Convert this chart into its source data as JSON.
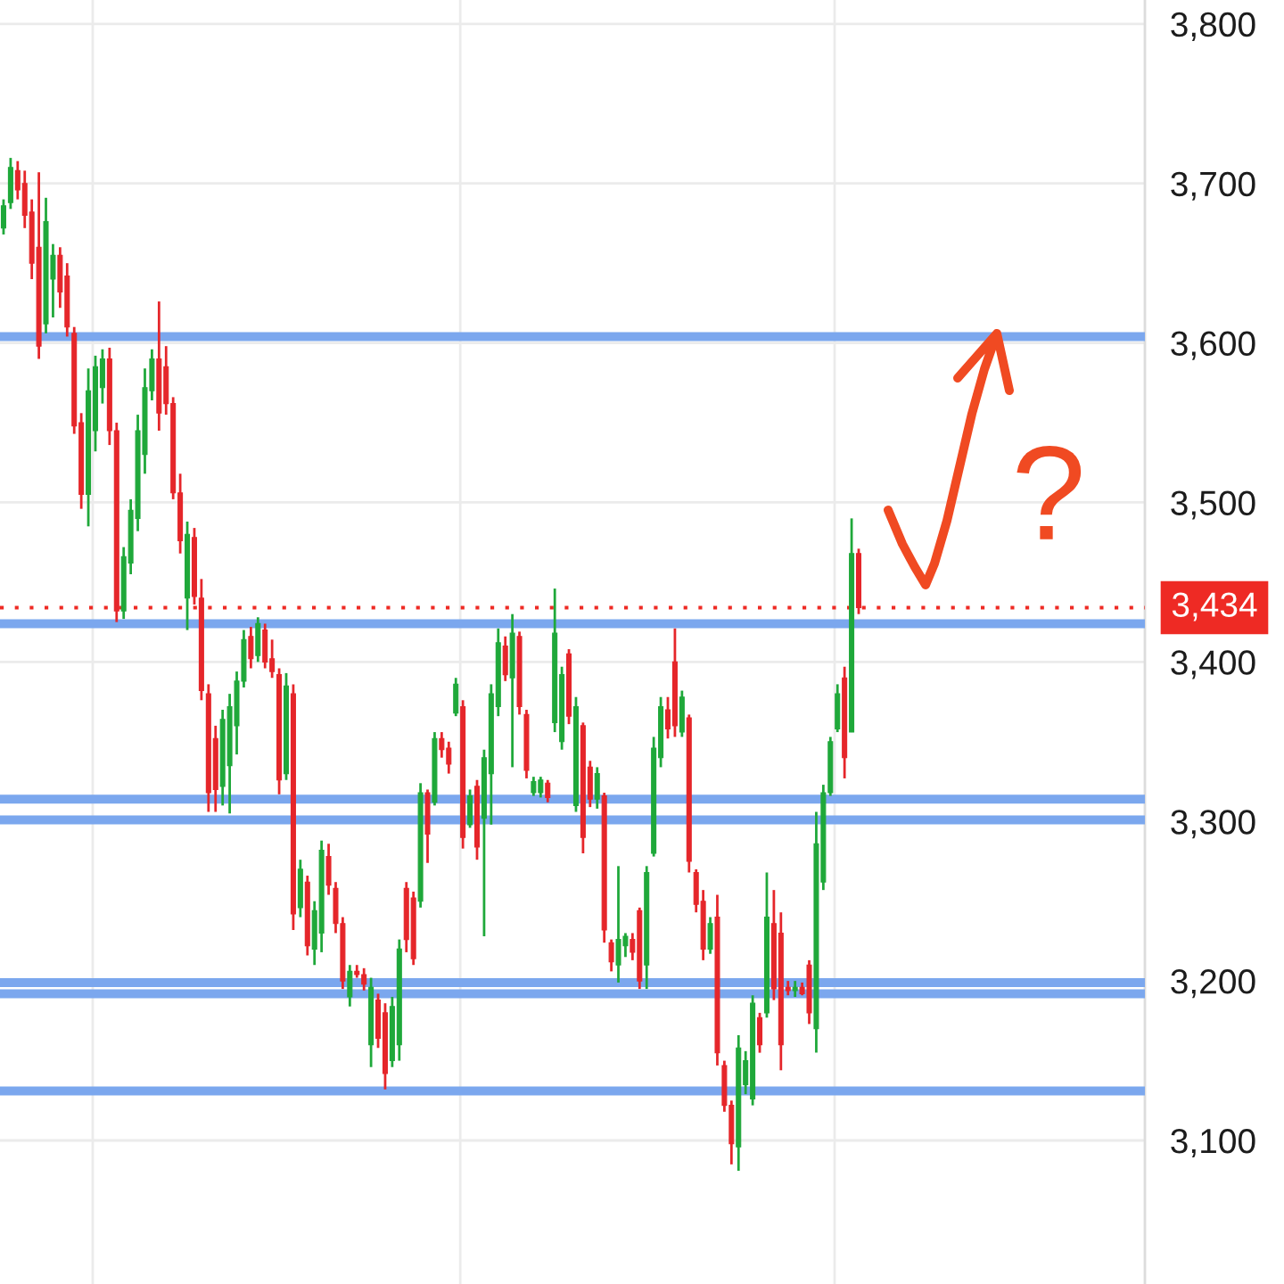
{
  "chart_data": {
    "type": "candlestick",
    "categories": [
      null,
      null,
      null,
      null,
      null,
      null,
      null,
      null,
      null,
      null,
      null,
      null,
      null,
      null,
      null,
      null,
      null,
      null,
      null,
      null,
      null,
      null,
      null,
      null,
      null,
      null,
      null,
      null,
      null,
      null,
      null,
      null,
      null,
      null,
      null,
      null,
      null,
      null,
      null,
      null,
      null,
      null,
      null,
      null,
      null,
      null,
      null,
      null,
      null,
      null,
      null,
      null,
      null,
      null,
      null,
      null,
      null,
      null,
      null,
      null,
      null,
      null,
      null,
      null,
      null,
      null,
      null,
      null,
      null,
      null,
      null,
      null,
      null,
      null,
      null,
      null,
      null,
      null,
      null,
      null,
      null,
      null,
      null,
      null,
      null,
      null,
      null,
      null,
      null,
      null,
      null,
      null,
      null,
      null,
      null,
      null,
      null,
      null,
      null,
      null,
      null,
      null,
      null,
      null,
      null,
      null,
      null,
      null,
      null,
      null,
      null,
      null,
      null,
      null,
      null,
      null,
      null,
      null,
      null,
      null,
      null,
      null,
      null,
      null,
      null,
      null,
      null,
      null,
      null,
      null,
      null,
      null,
      null,
      null,
      null,
      null,
      null,
      null,
      null,
      null,
      null,
      null,
      null,
      null,
      null,
      null,
      null,
      null,
      null,
      null,
      null,
      null,
      null,
      null,
      null,
      null,
      null,
      null,
      null,
      null,
      null,
      null
    ],
    "ohlc": [
      [
        3672,
        3690,
        3668,
        3686
      ],
      [
        3688,
        3716,
        3684,
        3710
      ],
      [
        3708,
        3714,
        3690,
        3696
      ],
      [
        3700,
        3708,
        3672,
        3680
      ],
      [
        3682,
        3690,
        3640,
        3650
      ],
      [
        3660,
        3707,
        3590,
        3598
      ],
      [
        3612,
        3691,
        3606,
        3676
      ],
      [
        3640,
        3662,
        3616,
        3655
      ],
      [
        3655,
        3660,
        3622,
        3632
      ],
      [
        3642,
        3650,
        3604,
        3610
      ],
      [
        3606,
        3610,
        3543,
        3548
      ],
      [
        3550,
        3556,
        3496,
        3505
      ],
      [
        3505,
        3584,
        3485,
        3570
      ],
      [
        3545,
        3592,
        3532,
        3585
      ],
      [
        3572,
        3596,
        3562,
        3590
      ],
      [
        3590,
        3597,
        3536,
        3545
      ],
      [
        3545,
        3550,
        3425,
        3432
      ],
      [
        3432,
        3472,
        3427,
        3466
      ],
      [
        3462,
        3502,
        3455,
        3495
      ],
      [
        3490,
        3555,
        3482,
        3545
      ],
      [
        3530,
        3584,
        3518,
        3572
      ],
      [
        3570,
        3596,
        3564,
        3590
      ],
      [
        3590,
        3626,
        3545,
        3556
      ],
      [
        3585,
        3598,
        3555,
        3562
      ],
      [
        3562,
        3566,
        3502,
        3506
      ],
      [
        3506,
        3518,
        3468,
        3476
      ],
      [
        3440,
        3488,
        3420,
        3480
      ],
      [
        3478,
        3484,
        3436,
        3441
      ],
      [
        3440,
        3452,
        3376,
        3382
      ],
      [
        3380,
        3386,
        3306,
        3318
      ],
      [
        3352,
        3360,
        3306,
        3320
      ],
      [
        3322,
        3370,
        3310,
        3364
      ],
      [
        3335,
        3380,
        3305,
        3372
      ],
      [
        3360,
        3394,
        3342,
        3388
      ],
      [
        3388,
        3420,
        3384,
        3414
      ],
      [
        3416,
        3422,
        3396,
        3402
      ],
      [
        3404,
        3428,
        3400,
        3424
      ],
      [
        3420,
        3424,
        3396,
        3400
      ],
      [
        3402,
        3414,
        3390,
        3394
      ],
      [
        3392,
        3396,
        3317,
        3326
      ],
      [
        3330,
        3393,
        3326,
        3385
      ],
      [
        3380,
        3386,
        3232,
        3242
      ],
      [
        3246,
        3276,
        3240,
        3270
      ],
      [
        3262,
        3266,
        3216,
        3222
      ],
      [
        3220,
        3250,
        3210,
        3244
      ],
      [
        3230,
        3288,
        3218,
        3282
      ],
      [
        3278,
        3286,
        3254,
        3260
      ],
      [
        3258,
        3262,
        3230,
        3236
      ],
      [
        3236,
        3240,
        3195,
        3200
      ],
      [
        3190,
        3210,
        3184,
        3206
      ],
      [
        3206,
        3210,
        3202,
        3204
      ],
      [
        3204,
        3208,
        3194,
        3198
      ],
      [
        3160,
        3202,
        3146,
        3196
      ],
      [
        3188,
        3192,
        3158,
        3164
      ],
      [
        3180,
        3186,
        3132,
        3142
      ],
      [
        3150,
        3190,
        3146,
        3184
      ],
      [
        3160,
        3226,
        3150,
        3220
      ],
      [
        3258,
        3262,
        3218,
        3226
      ],
      [
        3252,
        3256,
        3210,
        3214
      ],
      [
        3250,
        3324,
        3246,
        3318
      ],
      [
        3318,
        3320,
        3274,
        3292
      ],
      [
        3312,
        3356,
        3310,
        3352
      ],
      [
        3352,
        3356,
        3340,
        3345
      ],
      [
        3346,
        3350,
        3330,
        3336
      ],
      [
        3368,
        3390,
        3366,
        3386
      ],
      [
        3372,
        3376,
        3283,
        3290
      ],
      [
        3298,
        3320,
        3296,
        3316
      ],
      [
        3322,
        3326,
        3276,
        3284
      ],
      [
        3302,
        3345,
        3228,
        3340
      ],
      [
        3330,
        3386,
        3298,
        3380
      ],
      [
        3372,
        3421,
        3366,
        3412
      ],
      [
        3410,
        3416,
        3388,
        3392
      ],
      [
        3390,
        3430,
        3334,
        3418
      ],
      [
        3416,
        3419,
        3367,
        3372
      ],
      [
        3367,
        3370,
        3327,
        3332
      ],
      [
        3318,
        3328,
        3316,
        3325
      ],
      [
        3318,
        3328,
        3315,
        3326
      ],
      [
        3324,
        3326,
        3312,
        3315
      ],
      [
        3362,
        3446,
        3356,
        3418
      ],
      [
        3350,
        3397,
        3345,
        3392
      ],
      [
        3405,
        3408,
        3361,
        3366
      ],
      [
        3310,
        3378,
        3306,
        3372
      ],
      [
        3360,
        3362,
        3280,
        3290
      ],
      [
        3334,
        3338,
        3309,
        3314
      ],
      [
        3314,
        3334,
        3308,
        3330
      ],
      [
        3316,
        3318,
        3224,
        3232
      ],
      [
        3224,
        3226,
        3206,
        3212
      ],
      [
        3210,
        3272,
        3199,
        3226
      ],
      [
        3222,
        3230,
        3215,
        3228
      ],
      [
        3226,
        3230,
        3213,
        3218
      ],
      [
        3244,
        3246,
        3195,
        3200
      ],
      [
        3210,
        3272,
        3195,
        3268
      ],
      [
        3280,
        3353,
        3278,
        3346
      ],
      [
        3340,
        3378,
        3334,
        3372
      ],
      [
        3370,
        3378,
        3352,
        3358
      ],
      [
        3400,
        3421,
        3353,
        3360
      ],
      [
        3356,
        3382,
        3353,
        3378
      ],
      [
        3365,
        3367,
        3268,
        3275
      ],
      [
        3268,
        3270,
        3243,
        3248
      ],
      [
        3250,
        3257,
        3213,
        3220
      ],
      [
        3220,
        3240,
        3217,
        3236
      ],
      [
        3240,
        3254,
        3147,
        3155
      ],
      [
        3147,
        3150,
        3118,
        3122
      ],
      [
        3122,
        3125,
        3085,
        3098
      ],
      [
        3096,
        3166,
        3081,
        3158
      ],
      [
        3135,
        3156,
        3129,
        3150
      ],
      [
        3126,
        3191,
        3122,
        3186
      ],
      [
        3177,
        3180,
        3155,
        3160
      ],
      [
        3180,
        3268,
        3177,
        3240
      ],
      [
        3236,
        3257,
        3188,
        3195
      ],
      [
        3230,
        3243,
        3144,
        3160
      ],
      [
        3196,
        3200,
        3191,
        3194
      ],
      [
        3194,
        3200,
        3190,
        3196
      ],
      [
        3196,
        3199,
        3191,
        3192
      ],
      [
        3210,
        3213,
        3173,
        3180
      ],
      [
        3170,
        3306,
        3155,
        3286
      ],
      [
        3262,
        3323,
        3257,
        3318
      ],
      [
        3318,
        3353,
        3316,
        3350
      ],
      [
        3358,
        3386,
        3356,
        3380
      ],
      [
        3390,
        3397,
        3327,
        3340
      ],
      [
        3356,
        3490,
        3356,
        3468
      ],
      [
        3468,
        3471,
        3430,
        3434
      ],
      null,
      null,
      null,
      null,
      null,
      null,
      null,
      null,
      null,
      null,
      null,
      null,
      null,
      null,
      null,
      null,
      null,
      null,
      null,
      null,
      null,
      null,
      null,
      null,
      null,
      null,
      null,
      null,
      null,
      null,
      null,
      null,
      null,
      null,
      null,
      null,
      null,
      null,
      null,
      null
    ],
    "colors": [
      "#1fa83a",
      "#1fa83a",
      "#e5262a",
      "#e5262a",
      "#e5262a",
      "#e5262a",
      "#1fa83a",
      "#1fa83a",
      "#e5262a",
      "#e5262a",
      "#e5262a",
      "#e5262a",
      "#1fa83a",
      "#1fa83a",
      "#1fa83a",
      "#e5262a",
      "#e5262a",
      "#1fa83a",
      "#1fa83a",
      "#1fa83a",
      "#1fa83a",
      "#1fa83a",
      "#e5262a",
      "#e5262a",
      "#e5262a",
      "#e5262a",
      "#1fa83a",
      "#e5262a",
      "#e5262a",
      "#e5262a",
      "#e5262a",
      "#1fa83a",
      "#1fa83a",
      "#1fa83a",
      "#1fa83a",
      "#e5262a",
      "#1fa83a",
      "#e5262a",
      "#e5262a",
      "#e5262a",
      "#1fa83a",
      "#e5262a",
      "#1fa83a",
      "#e5262a",
      "#1fa83a",
      "#1fa83a",
      "#e5262a",
      "#e5262a",
      "#e5262a",
      "#1fa83a",
      "#e5262a",
      "#e5262a",
      "#1fa83a",
      "#e5262a",
      "#e5262a",
      "#1fa83a",
      "#1fa83a",
      "#e5262a",
      "#e5262a",
      "#1fa83a",
      "#e5262a",
      "#1fa83a",
      "#e5262a",
      "#e5262a",
      "#1fa83a",
      "#e5262a",
      "#1fa83a",
      "#e5262a",
      "#1fa83a",
      "#1fa83a",
      "#1fa83a",
      "#e5262a",
      "#1fa83a",
      "#e5262a",
      "#e5262a",
      "#1fa83a",
      "#1fa83a",
      "#e5262a",
      "#1fa83a",
      "#1fa83a",
      "#e5262a",
      "#1fa83a",
      "#e5262a",
      "#e5262a",
      "#1fa83a",
      "#e5262a",
      "#e5262a",
      "#1fa83a",
      "#1fa83a",
      "#e5262a",
      "#e5262a",
      "#1fa83a",
      "#1fa83a",
      "#1fa83a",
      "#e5262a",
      "#e5262a",
      "#1fa83a",
      "#e5262a",
      "#e5262a",
      "#e5262a",
      "#1fa83a",
      "#e5262a",
      "#e5262a",
      "#e5262a",
      "#1fa83a",
      "#1fa83a",
      "#1fa83a",
      "#e5262a",
      "#1fa83a",
      "#e5262a",
      "#e5262a",
      "#e5262a",
      "#1fa83a",
      "#e5262a",
      "#e5262a",
      "#1fa83a",
      "#1fa83a",
      "#1fa83a",
      "#1fa83a",
      "#e5262a",
      "#1fa83a",
      "#e5262a",
      null,
      null,
      null,
      null,
      null,
      null,
      null,
      null,
      null,
      null,
      null,
      null,
      null,
      null,
      null,
      null,
      null,
      null,
      null,
      null,
      null,
      null,
      null,
      null,
      null,
      null,
      null,
      null,
      null,
      null,
      null,
      null,
      null,
      null,
      null,
      null,
      null,
      null,
      null,
      null
    ],
    "ylim": [
      3010,
      3815
    ],
    "yticks": [
      {
        "value": 3100,
        "label": "3,100"
      },
      {
        "value": 3200,
        "label": "3,200"
      },
      {
        "value": 3300,
        "label": "3,300"
      },
      {
        "value": 3400,
        "label": "3,400"
      },
      {
        "value": 3500,
        "label": "3,500"
      },
      {
        "value": 3600,
        "label": "3,600"
      },
      {
        "value": 3700,
        "label": "3,700"
      },
      {
        "value": 3800,
        "label": "3,800"
      }
    ],
    "grid": true,
    "tick_labels": "y",
    "ref_lines": [
      {
        "axis": "y",
        "value": 3604,
        "color": "#7ba7ee",
        "line_style": "solid"
      },
      {
        "axis": "y",
        "value": 3424,
        "color": "#7ba7ee",
        "line_style": "solid"
      },
      {
        "axis": "y",
        "value": 3314,
        "color": "#7ba7ee",
        "line_style": "solid"
      },
      {
        "axis": "y",
        "value": 3301,
        "color": "#7ba7ee",
        "line_style": "solid"
      },
      {
        "axis": "y",
        "value": 3199,
        "color": "#7ba7ee",
        "line_style": "solid"
      },
      {
        "axis": "y",
        "value": 3192,
        "color": "#7ba7ee",
        "line_style": "solid"
      },
      {
        "axis": "y",
        "value": 3131,
        "color": "#7ba7ee",
        "line_style": "solid"
      },
      {
        "axis": "y",
        "value": 3434,
        "label": "3,434",
        "color": "#ee2a24",
        "line_style": "dotted"
      }
    ],
    "annotations": [
      "?"
    ]
  }
}
